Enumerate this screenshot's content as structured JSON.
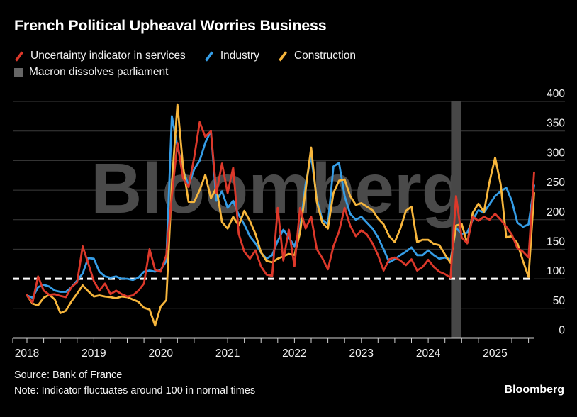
{
  "title": "French Political Upheaval Worries Business",
  "watermark": "Bloomberg",
  "brand": "Bloomberg",
  "source_line": "Source: Bank of France",
  "note_line": "Note: Indicator fluctuates around 100 in normal times",
  "colors": {
    "background": "#000000",
    "services_red": "#dc382a",
    "industry_blue": "#359de6",
    "construction_yellow": "#f7b63c",
    "gridline": "#3c3c3c",
    "axis_line": "#d2d2d2",
    "dashed_line": "#ffffff",
    "event_band": "#474747",
    "watermark_gray": "#4a4a4a",
    "text": "#f2f2f2",
    "legend_square_gray": "#666666"
  },
  "legend": [
    {
      "row": 1,
      "marker": "slash",
      "color": "#dc382a",
      "label": "Uncertainty indicator in services"
    },
    {
      "row": 1,
      "marker": "slash",
      "color": "#359de6",
      "label": "Industry"
    },
    {
      "row": 1,
      "marker": "slash",
      "color": "#f7b63c",
      "label": "Construction"
    },
    {
      "row": 2,
      "marker": "square",
      "color": "#666666",
      "label": "Macron dissolves parliament"
    }
  ],
  "chart_data": {
    "type": "line",
    "title": "French Political Upheaval Worries Business",
    "x_start_month": "2018-01",
    "x_step_months": 1,
    "x_tick_year_labels": [
      "2018",
      "2019",
      "2020",
      "2021",
      "2022",
      "2023",
      "2024",
      "2025"
    ],
    "minor_tick_every_months": 3,
    "y_ticks": [
      0,
      50,
      100,
      150,
      200,
      250,
      300,
      350,
      400
    ],
    "ylim": [
      0,
      400
    ],
    "grid": true,
    "legend_position": "top",
    "dashed_reference_line": 100,
    "event_band": {
      "label": "Macron dissolves parliament",
      "month": "2024-06",
      "month_index": 77
    },
    "series": [
      {
        "name": "Industry",
        "color": "#359de6",
        "values": [
          72,
          68,
          86,
          90,
          87,
          80,
          78,
          78,
          86,
          97,
          109,
          135,
          134,
          112,
          104,
          102,
          104,
          100,
          100,
          98,
          102,
          112,
          114,
          112,
          115,
          130,
          375,
          324,
          284,
          258,
          285,
          300,
          330,
          350,
          232,
          248,
          220,
          232,
          208,
          192,
          172,
          160,
          144,
          134,
          140,
          164,
          183,
          170,
          155,
          184,
          260,
          308,
          235,
          200,
          192,
          290,
          296,
          240,
          210,
          200,
          205,
          195,
          185,
          170,
          150,
          128,
          133,
          140,
          146,
          153,
          140,
          140,
          148,
          140,
          134,
          136,
          132,
          186,
          176,
          178,
          200,
          216,
          212,
          226,
          240,
          248,
          254,
          232,
          195,
          188,
          192,
          258
        ]
      },
      {
        "name": "Construction",
        "color": "#f7b63c",
        "values": [
          72,
          58,
          55,
          68,
          73,
          65,
          42,
          46,
          62,
          75,
          89,
          79,
          70,
          72,
          70,
          69,
          67,
          70,
          69,
          65,
          61,
          51,
          48,
          21,
          53,
          64,
          260,
          395,
          290,
          230,
          230,
          250,
          276,
          236,
          254,
          196,
          185,
          205,
          190,
          215,
          198,
          176,
          145,
          130,
          128,
          134,
          138,
          142,
          140,
          178,
          250,
          322,
          230,
          195,
          185,
          245,
          266,
          268,
          240,
          225,
          228,
          222,
          216,
          202,
          192,
          172,
          162,
          185,
          215,
          222,
          162,
          166,
          166,
          159,
          157,
          141,
          127,
          190,
          193,
          160,
          212,
          227,
          213,
          264,
          305,
          260,
          170,
          172,
          160,
          130,
          103,
          245
        ]
      },
      {
        "name": "Uncertainty indicator in services",
        "color": "#dc382a",
        "values": [
          72,
          60,
          104,
          80,
          73,
          74,
          71,
          69,
          86,
          94,
          155,
          126,
          96,
          80,
          92,
          74,
          80,
          74,
          70,
          72,
          80,
          92,
          150,
          115,
          112,
          140,
          240,
          330,
          270,
          255,
          305,
          365,
          340,
          350,
          245,
          295,
          245,
          288,
          176,
          146,
          134,
          148,
          121,
          107,
          105,
          220,
          131,
          183,
          121,
          220,
          185,
          205,
          150,
          135,
          116,
          155,
          180,
          220,
          190,
          172,
          182,
          175,
          160,
          140,
          114,
          133,
          136,
          131,
          123,
          133,
          114,
          120,
          132,
          120,
          112,
          108,
          102,
          240,
          170,
          160,
          205,
          198,
          205,
          200,
          210,
          200,
          188,
          175,
          152,
          146,
          136,
          280
        ]
      }
    ]
  }
}
